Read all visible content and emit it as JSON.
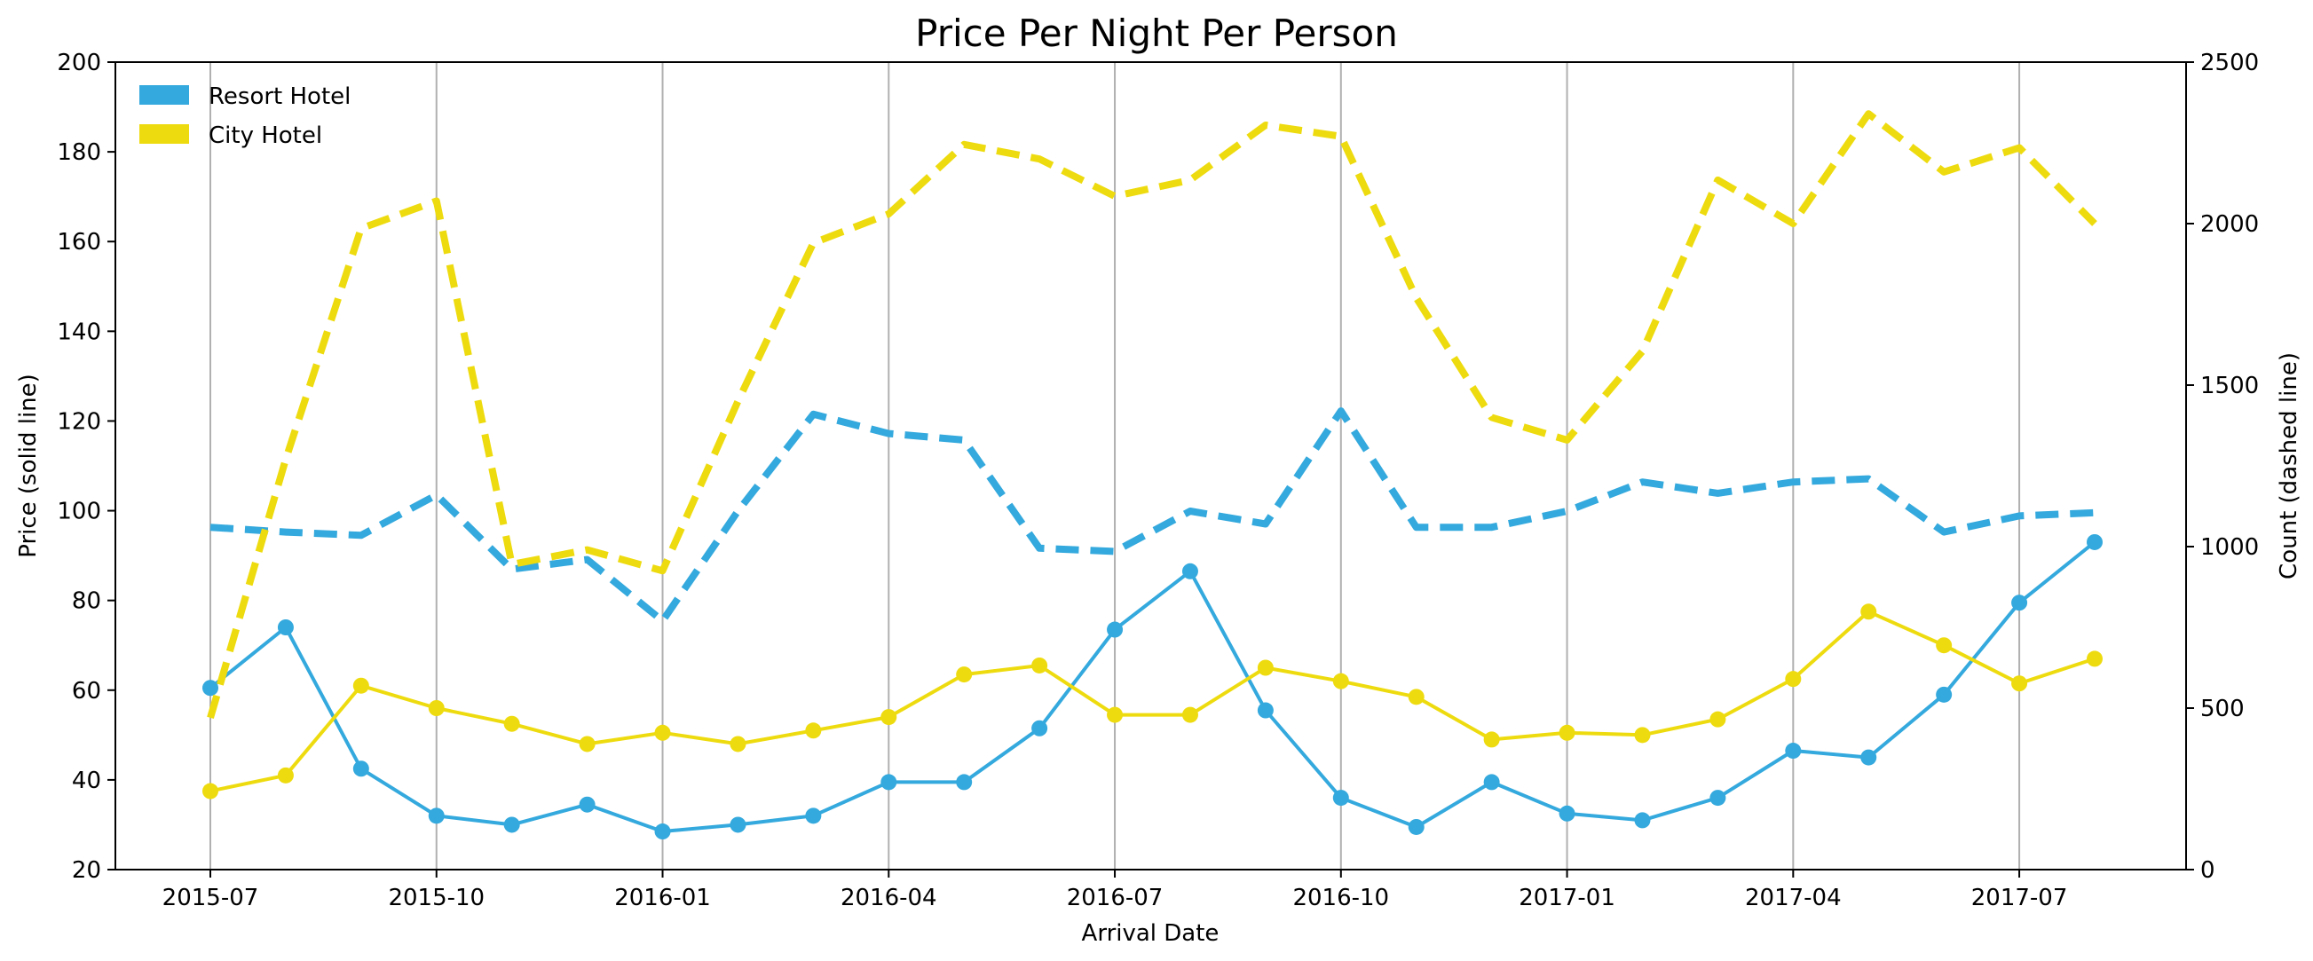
{
  "chart_data": {
    "type": "line",
    "title": "Price Per Night Per Person",
    "xlabel": "Arrival Date",
    "ylabel_left": "Price (solid line)",
    "ylabel_right": "Count (dashed line)",
    "ylim_left": [
      20,
      200
    ],
    "ylim_right": [
      0,
      2500
    ],
    "yticks_left": [
      20,
      40,
      60,
      80,
      100,
      120,
      140,
      160,
      180,
      200
    ],
    "yticks_right": [
      0,
      500,
      1000,
      1500,
      2000,
      2500
    ],
    "xticks": [
      "2015-07",
      "2015-10",
      "2016-01",
      "2016-04",
      "2016-07",
      "2016-10",
      "2017-01",
      "2017-04",
      "2017-07"
    ],
    "x": [
      "2015-07",
      "2015-08",
      "2015-09",
      "2015-10",
      "2015-11",
      "2015-12",
      "2016-01",
      "2016-02",
      "2016-03",
      "2016-04",
      "2016-05",
      "2016-06",
      "2016-07",
      "2016-08",
      "2016-09",
      "2016-10",
      "2016-11",
      "2016-12",
      "2017-01",
      "2017-02",
      "2017-03",
      "2017-04",
      "2017-05",
      "2017-06",
      "2017-07",
      "2017-08"
    ],
    "grid": "vertical",
    "legend_position": "top-left",
    "series": [
      {
        "name": "Resort Hotel",
        "color": "#34a9dd",
        "price": [
          60.5,
          74,
          42.5,
          32,
          30,
          34.5,
          28.5,
          30,
          32,
          39.5,
          39.5,
          51.5,
          73.5,
          86.5,
          55.5,
          36,
          29.5,
          39.5,
          32.5,
          31,
          36,
          46.5,
          45,
          59,
          79.5,
          93
        ],
        "count": [
          1060,
          1045,
          1035,
          1160,
          930,
          960,
          770,
          1110,
          1410,
          1350,
          1330,
          995,
          985,
          1110,
          1070,
          1420,
          1060,
          1060,
          1110,
          1200,
          1165,
          1200,
          1210,
          1045,
          1095,
          1105
        ]
      },
      {
        "name": "City Hotel",
        "color": "#eedb0f",
        "price": [
          37.5,
          41,
          61,
          56,
          52.5,
          48,
          50.5,
          48,
          51,
          54,
          63.5,
          65.5,
          54.5,
          54.5,
          65,
          62,
          58.5,
          49,
          50.5,
          50,
          53.5,
          62.5,
          77.5,
          70,
          61.5,
          67
        ],
        "count": [
          470,
          1270,
          1985,
          2070,
          945,
          990,
          925,
          1450,
          1940,
          2030,
          2245,
          2200,
          2085,
          2135,
          2305,
          2270,
          1770,
          1400,
          1330,
          1605,
          2135,
          2000,
          2340,
          2160,
          2235,
          2000
        ]
      }
    ]
  }
}
